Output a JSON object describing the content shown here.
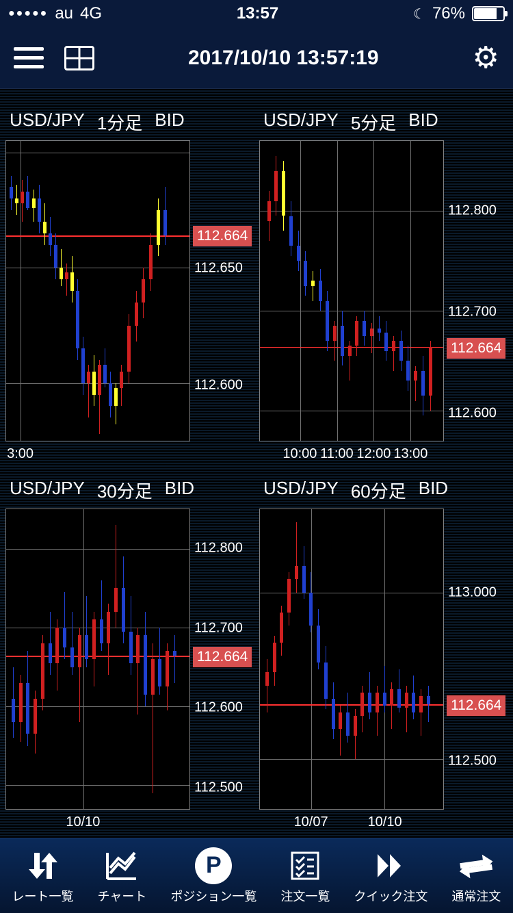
{
  "status_bar": {
    "carrier": "au",
    "network": "4G",
    "time": "13:57",
    "battery_pct": "76%"
  },
  "header": {
    "timestamp": "2017/10/10 13:57:19"
  },
  "colors": {
    "bg": "#000000",
    "panel_border": "#808080",
    "grid": "#707070",
    "text": "#ffffff",
    "candle_up": "#d02020",
    "candle_down": "#2040d0",
    "highlight": "#ffff30",
    "price_line": "#ff3030",
    "price_tag_bg": "#d85050",
    "header_bg": "#0a1a3a"
  },
  "charts": [
    {
      "pair": "USD/JPY",
      "timeframe": "1分足",
      "side": "BID",
      "ymin": 112.575,
      "ymax": 112.705,
      "yticks": [
        112.6,
        112.65
      ],
      "ygrid": [
        112.6,
        112.65,
        112.7
      ],
      "xgrid_pct": [
        8
      ],
      "xticks": [
        {
          "pos": 8,
          "label": "3:00"
        }
      ],
      "price": 112.664,
      "candles": [
        {
          "x": 2,
          "o": 112.685,
          "h": 112.69,
          "l": 112.675,
          "c": 112.68,
          "hl": false
        },
        {
          "x": 5,
          "o": 112.68,
          "h": 112.686,
          "l": 112.673,
          "c": 112.678,
          "hl": true
        },
        {
          "x": 8,
          "o": 112.678,
          "h": 112.688,
          "l": 112.67,
          "c": 112.683,
          "hl": false
        },
        {
          "x": 11,
          "o": 112.683,
          "h": 112.69,
          "l": 112.675,
          "c": 112.676,
          "hl": false
        },
        {
          "x": 14,
          "o": 112.676,
          "h": 112.684,
          "l": 112.67,
          "c": 112.68,
          "hl": true
        },
        {
          "x": 17,
          "o": 112.68,
          "h": 112.686,
          "l": 112.665,
          "c": 112.67,
          "hl": false
        },
        {
          "x": 20,
          "o": 112.67,
          "h": 112.678,
          "l": 112.66,
          "c": 112.665,
          "hl": true
        },
        {
          "x": 23,
          "o": 112.665,
          "h": 112.672,
          "l": 112.655,
          "c": 112.66,
          "hl": false
        },
        {
          "x": 26,
          "o": 112.66,
          "h": 112.665,
          "l": 112.645,
          "c": 112.65,
          "hl": false
        },
        {
          "x": 29,
          "o": 112.65,
          "h": 112.658,
          "l": 112.642,
          "c": 112.645,
          "hl": true
        },
        {
          "x": 32,
          "o": 112.645,
          "h": 112.652,
          "l": 112.638,
          "c": 112.648,
          "hl": false
        },
        {
          "x": 35,
          "o": 112.648,
          "h": 112.655,
          "l": 112.635,
          "c": 112.64,
          "hl": true
        },
        {
          "x": 38,
          "o": 112.64,
          "h": 112.645,
          "l": 112.61,
          "c": 112.615,
          "hl": false
        },
        {
          "x": 41,
          "o": 112.615,
          "h": 112.62,
          "l": 112.595,
          "c": 112.6,
          "hl": false
        },
        {
          "x": 44,
          "o": 112.6,
          "h": 112.608,
          "l": 112.585,
          "c": 112.605,
          "hl": false
        },
        {
          "x": 47,
          "o": 112.605,
          "h": 112.612,
          "l": 112.59,
          "c": 112.595,
          "hl": true
        },
        {
          "x": 50,
          "o": 112.595,
          "h": 112.61,
          "l": 112.578,
          "c": 112.608,
          "hl": false
        },
        {
          "x": 53,
          "o": 112.608,
          "h": 112.615,
          "l": 112.598,
          "c": 112.6,
          "hl": false
        },
        {
          "x": 56,
          "o": 112.6,
          "h": 112.605,
          "l": 112.585,
          "c": 112.59,
          "hl": false
        },
        {
          "x": 59,
          "o": 112.59,
          "h": 112.6,
          "l": 112.582,
          "c": 112.598,
          "hl": true
        },
        {
          "x": 62,
          "o": 112.598,
          "h": 112.608,
          "l": 112.59,
          "c": 112.605,
          "hl": false
        },
        {
          "x": 66,
          "o": 112.605,
          "h": 112.63,
          "l": 112.6,
          "c": 112.625,
          "hl": false
        },
        {
          "x": 70,
          "o": 112.625,
          "h": 112.64,
          "l": 112.618,
          "c": 112.635,
          "hl": false
        },
        {
          "x": 74,
          "o": 112.635,
          "h": 112.65,
          "l": 112.628,
          "c": 112.645,
          "hl": false
        },
        {
          "x": 78,
          "o": 112.645,
          "h": 112.665,
          "l": 112.64,
          "c": 112.66,
          "hl": false
        },
        {
          "x": 82,
          "o": 112.66,
          "h": 112.68,
          "l": 112.655,
          "c": 112.675,
          "hl": true
        },
        {
          "x": 86,
          "o": 112.675,
          "h": 112.685,
          "l": 112.66,
          "c": 112.664,
          "hl": false
        }
      ]
    },
    {
      "pair": "USD/JPY",
      "timeframe": "5分足",
      "side": "BID",
      "ymin": 112.57,
      "ymax": 112.87,
      "yticks": [
        112.6,
        112.7,
        112.8
      ],
      "ygrid": [
        112.6,
        112.7,
        112.8
      ],
      "xgrid_pct": [
        22,
        42,
        62,
        82
      ],
      "xticks": [
        {
          "pos": 22,
          "label": "10:00"
        },
        {
          "pos": 42,
          "label": "11:00"
        },
        {
          "pos": 62,
          "label": "12:00"
        },
        {
          "pos": 82,
          "label": "13:00"
        }
      ],
      "price": 112.664,
      "candles": [
        {
          "x": 4,
          "o": 112.79,
          "h": 112.82,
          "l": 112.77,
          "c": 112.81,
          "hl": false
        },
        {
          "x": 8,
          "o": 112.81,
          "h": 112.855,
          "l": 112.795,
          "c": 112.84,
          "hl": false
        },
        {
          "x": 12,
          "o": 112.84,
          "h": 112.85,
          "l": 112.78,
          "c": 112.795,
          "hl": true
        },
        {
          "x": 16,
          "o": 112.795,
          "h": 112.81,
          "l": 112.755,
          "c": 112.765,
          "hl": false
        },
        {
          "x": 20,
          "o": 112.765,
          "h": 112.78,
          "l": 112.74,
          "c": 112.75,
          "hl": false
        },
        {
          "x": 24,
          "o": 112.75,
          "h": 112.76,
          "l": 112.715,
          "c": 112.725,
          "hl": false
        },
        {
          "x": 28,
          "o": 112.725,
          "h": 112.74,
          "l": 112.71,
          "c": 112.73,
          "hl": true
        },
        {
          "x": 32,
          "o": 112.73,
          "h": 112.742,
          "l": 112.7,
          "c": 112.71,
          "hl": false
        },
        {
          "x": 36,
          "o": 112.71,
          "h": 112.72,
          "l": 112.66,
          "c": 112.67,
          "hl": false
        },
        {
          "x": 40,
          "o": 112.67,
          "h": 112.69,
          "l": 112.65,
          "c": 112.685,
          "hl": false
        },
        {
          "x": 44,
          "o": 112.685,
          "h": 112.7,
          "l": 112.645,
          "c": 112.655,
          "hl": false
        },
        {
          "x": 48,
          "o": 112.655,
          "h": 112.67,
          "l": 112.63,
          "c": 112.665,
          "hl": false
        },
        {
          "x": 52,
          "o": 112.665,
          "h": 112.695,
          "l": 112.655,
          "c": 112.69,
          "hl": false
        },
        {
          "x": 56,
          "o": 112.69,
          "h": 112.7,
          "l": 112.665,
          "c": 112.675,
          "hl": false
        },
        {
          "x": 60,
          "o": 112.675,
          "h": 112.688,
          "l": 112.658,
          "c": 112.682,
          "hl": false
        },
        {
          "x": 64,
          "o": 112.682,
          "h": 112.695,
          "l": 112.67,
          "c": 112.678,
          "hl": false
        },
        {
          "x": 68,
          "o": 112.678,
          "h": 112.69,
          "l": 112.65,
          "c": 112.66,
          "hl": false
        },
        {
          "x": 72,
          "o": 112.66,
          "h": 112.675,
          "l": 112.64,
          "c": 112.67,
          "hl": false
        },
        {
          "x": 76,
          "o": 112.67,
          "h": 112.68,
          "l": 112.64,
          "c": 112.65,
          "hl": false
        },
        {
          "x": 80,
          "o": 112.65,
          "h": 112.665,
          "l": 112.62,
          "c": 112.63,
          "hl": false
        },
        {
          "x": 84,
          "o": 112.63,
          "h": 112.645,
          "l": 112.61,
          "c": 112.64,
          "hl": false
        },
        {
          "x": 88,
          "o": 112.64,
          "h": 112.655,
          "l": 112.595,
          "c": 112.615,
          "hl": false
        },
        {
          "x": 92,
          "o": 112.615,
          "h": 112.67,
          "l": 112.6,
          "c": 112.664,
          "hl": false
        }
      ]
    },
    {
      "pair": "USD/JPY",
      "timeframe": "30分足",
      "side": "BID",
      "ymin": 112.47,
      "ymax": 112.85,
      "yticks": [
        112.5,
        112.6,
        112.7,
        112.8
      ],
      "ygrid": [
        112.5,
        112.6,
        112.7,
        112.8
      ],
      "xgrid_pct": [
        42
      ],
      "xticks": [
        {
          "pos": 42,
          "label": "10/10"
        }
      ],
      "price": 112.664,
      "candles": [
        {
          "x": 3,
          "o": 112.61,
          "h": 112.65,
          "l": 112.56,
          "c": 112.58,
          "hl": false
        },
        {
          "x": 7,
          "o": 112.58,
          "h": 112.64,
          "l": 112.555,
          "c": 112.63,
          "hl": false
        },
        {
          "x": 11,
          "o": 112.63,
          "h": 112.67,
          "l": 112.55,
          "c": 112.565,
          "hl": false
        },
        {
          "x": 15,
          "o": 112.565,
          "h": 112.62,
          "l": 112.54,
          "c": 112.61,
          "hl": false
        },
        {
          "x": 19,
          "o": 112.61,
          "h": 112.69,
          "l": 112.595,
          "c": 112.68,
          "hl": false
        },
        {
          "x": 23,
          "o": 112.68,
          "h": 112.72,
          "l": 112.64,
          "c": 112.655,
          "hl": false
        },
        {
          "x": 27,
          "o": 112.655,
          "h": 112.71,
          "l": 112.62,
          "c": 112.7,
          "hl": false
        },
        {
          "x": 31,
          "o": 112.7,
          "h": 112.745,
          "l": 112.66,
          "c": 112.675,
          "hl": false
        },
        {
          "x": 35,
          "o": 112.675,
          "h": 112.72,
          "l": 112.64,
          "c": 112.65,
          "hl": false
        },
        {
          "x": 39,
          "o": 112.65,
          "h": 112.7,
          "l": 112.58,
          "c": 112.69,
          "hl": false
        },
        {
          "x": 43,
          "o": 112.69,
          "h": 112.74,
          "l": 112.65,
          "c": 112.66,
          "hl": false
        },
        {
          "x": 47,
          "o": 112.66,
          "h": 112.72,
          "l": 112.625,
          "c": 112.71,
          "hl": false
        },
        {
          "x": 51,
          "o": 112.71,
          "h": 112.76,
          "l": 112.67,
          "c": 112.68,
          "hl": false
        },
        {
          "x": 55,
          "o": 112.68,
          "h": 112.73,
          "l": 112.64,
          "c": 112.72,
          "hl": false
        },
        {
          "x": 59,
          "o": 112.72,
          "h": 112.83,
          "l": 112.7,
          "c": 112.75,
          "hl": false
        },
        {
          "x": 63,
          "o": 112.75,
          "h": 112.79,
          "l": 112.68,
          "c": 112.695,
          "hl": false
        },
        {
          "x": 67,
          "o": 112.695,
          "h": 112.74,
          "l": 112.64,
          "c": 112.655,
          "hl": false
        },
        {
          "x": 71,
          "o": 112.655,
          "h": 112.7,
          "l": 112.59,
          "c": 112.69,
          "hl": false
        },
        {
          "x": 75,
          "o": 112.69,
          "h": 112.72,
          "l": 112.6,
          "c": 112.615,
          "hl": false
        },
        {
          "x": 79,
          "o": 112.615,
          "h": 112.68,
          "l": 112.49,
          "c": 112.66,
          "hl": false
        },
        {
          "x": 83,
          "o": 112.66,
          "h": 112.7,
          "l": 112.615,
          "c": 112.625,
          "hl": false
        },
        {
          "x": 87,
          "o": 112.625,
          "h": 112.68,
          "l": 112.595,
          "c": 112.67,
          "hl": false
        },
        {
          "x": 91,
          "o": 112.67,
          "h": 112.69,
          "l": 112.63,
          "c": 112.664,
          "hl": false
        }
      ]
    },
    {
      "pair": "USD/JPY",
      "timeframe": "60分足",
      "side": "BID",
      "ymin": 112.35,
      "ymax": 113.25,
      "yticks": [
        112.5,
        113.0
      ],
      "ygrid": [
        112.5,
        113.0
      ],
      "xgrid_pct": [
        28,
        68
      ],
      "xticks": [
        {
          "pos": 28,
          "label": "10/07"
        },
        {
          "pos": 68,
          "label": "10/10"
        }
      ],
      "price": 112.664,
      "candles": [
        {
          "x": 3,
          "o": 112.72,
          "h": 112.8,
          "l": 112.64,
          "c": 112.76,
          "hl": false
        },
        {
          "x": 7,
          "o": 112.76,
          "h": 112.87,
          "l": 112.72,
          "c": 112.85,
          "hl": false
        },
        {
          "x": 11,
          "o": 112.85,
          "h": 112.96,
          "l": 112.81,
          "c": 112.94,
          "hl": false
        },
        {
          "x": 15,
          "o": 112.94,
          "h": 113.06,
          "l": 112.9,
          "c": 113.04,
          "hl": false
        },
        {
          "x": 19,
          "o": 113.04,
          "h": 113.21,
          "l": 113.0,
          "c": 113.08,
          "hl": false
        },
        {
          "x": 23,
          "o": 113.08,
          "h": 113.14,
          "l": 112.98,
          "c": 113.0,
          "hl": false
        },
        {
          "x": 27,
          "o": 113.0,
          "h": 113.06,
          "l": 112.88,
          "c": 112.9,
          "hl": false
        },
        {
          "x": 31,
          "o": 112.9,
          "h": 112.95,
          "l": 112.77,
          "c": 112.79,
          "hl": false
        },
        {
          "x": 35,
          "o": 112.79,
          "h": 112.84,
          "l": 112.65,
          "c": 112.68,
          "hl": false
        },
        {
          "x": 39,
          "o": 112.68,
          "h": 112.73,
          "l": 112.56,
          "c": 112.59,
          "hl": false
        },
        {
          "x": 43,
          "o": 112.59,
          "h": 112.66,
          "l": 112.51,
          "c": 112.64,
          "hl": false
        },
        {
          "x": 47,
          "o": 112.64,
          "h": 112.7,
          "l": 112.55,
          "c": 112.57,
          "hl": false
        },
        {
          "x": 51,
          "o": 112.57,
          "h": 112.65,
          "l": 112.5,
          "c": 112.63,
          "hl": false
        },
        {
          "x": 55,
          "o": 112.63,
          "h": 112.72,
          "l": 112.58,
          "c": 112.7,
          "hl": false
        },
        {
          "x": 59,
          "o": 112.7,
          "h": 112.76,
          "l": 112.62,
          "c": 112.64,
          "hl": false
        },
        {
          "x": 63,
          "o": 112.64,
          "h": 112.72,
          "l": 112.57,
          "c": 112.7,
          "hl": false
        },
        {
          "x": 67,
          "o": 112.7,
          "h": 112.78,
          "l": 112.64,
          "c": 112.66,
          "hl": false
        },
        {
          "x": 71,
          "o": 112.66,
          "h": 112.73,
          "l": 112.59,
          "c": 112.71,
          "hl": false
        },
        {
          "x": 75,
          "o": 112.71,
          "h": 112.77,
          "l": 112.64,
          "c": 112.655,
          "hl": false
        },
        {
          "x": 79,
          "o": 112.655,
          "h": 112.72,
          "l": 112.58,
          "c": 112.7,
          "hl": false
        },
        {
          "x": 83,
          "o": 112.7,
          "h": 112.75,
          "l": 112.62,
          "c": 112.64,
          "hl": false
        },
        {
          "x": 87,
          "o": 112.64,
          "h": 112.71,
          "l": 112.57,
          "c": 112.69,
          "hl": false
        },
        {
          "x": 91,
          "o": 112.69,
          "h": 112.72,
          "l": 112.61,
          "c": 112.664,
          "hl": false
        }
      ]
    }
  ],
  "tabs": [
    {
      "label": "レート一覧",
      "icon": "arrows"
    },
    {
      "label": "チャート",
      "icon": "chart"
    },
    {
      "label": "ポジション一覧",
      "icon": "P"
    },
    {
      "label": "注文一覧",
      "icon": "list"
    },
    {
      "label": "クイック注文",
      "icon": "fast"
    },
    {
      "label": "通常注文",
      "icon": "swap"
    }
  ]
}
